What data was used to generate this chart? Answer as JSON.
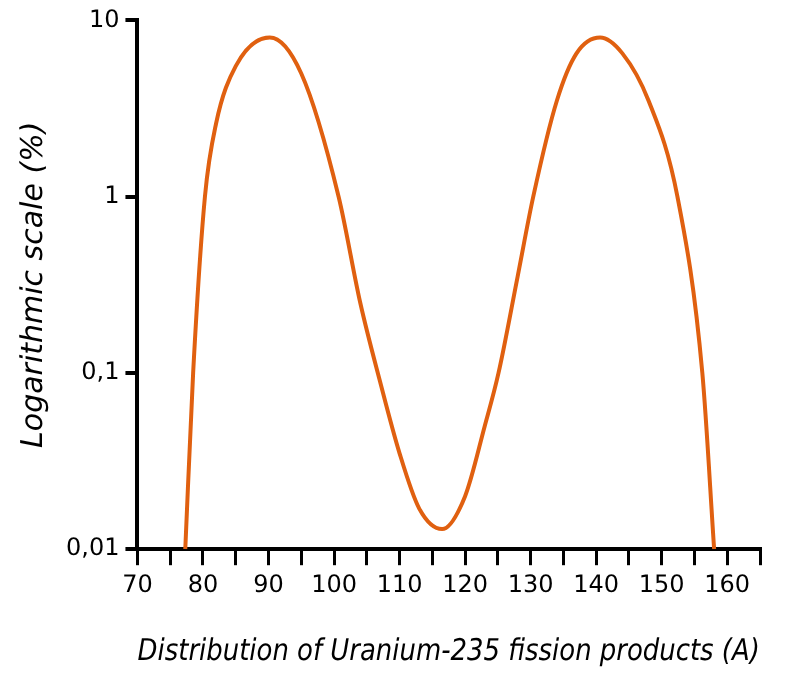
{
  "chart_data": {
    "type": "line",
    "xlabel": "Distribution of Uranium-235 fission products (A)",
    "ylabel": "Logarithmic scale (%)",
    "log": "y",
    "grid": false,
    "legend": false,
    "marker": "none",
    "line_style": "solid",
    "xlim": [
      70,
      165
    ],
    "xticks": [
      70,
      {
        "value": 75,
        "label": null
      },
      80,
      {
        "value": 85,
        "label": null
      },
      90,
      {
        "value": 95,
        "label": null
      },
      100,
      {
        "value": 105,
        "label": null
      },
      110,
      {
        "value": 115,
        "label": null
      },
      120,
      {
        "value": 125,
        "label": null
      },
      130,
      {
        "value": 135,
        "label": null
      },
      140,
      {
        "value": 145,
        "label": null
      },
      150,
      {
        "value": 155,
        "label": null
      },
      160,
      {
        "value": 165,
        "label": null
      }
    ],
    "ylim": [
      0.01,
      10
    ],
    "yticks": [
      {
        "value": 0.01,
        "label": "0,01"
      },
      {
        "value": 0.1,
        "label": "0,1"
      },
      1,
      10
    ],
    "series": [
      {
        "color": "#e06010",
        "x": [
          77.3,
          78.5,
          80.3,
          82,
          85,
          90.2,
          95,
          100.7,
          104,
          107,
          110,
          113,
          116.5,
          120,
          123,
          125.1,
          128,
          130.4,
          134,
          137,
          140.6,
          144,
          148,
          152.4,
          156.2,
          158
        ],
        "values": [
          0.01,
          0.1,
          1,
          2.6,
          5.5,
          8,
          5,
          1,
          0.25,
          0.09,
          0.035,
          0.017,
          0.013,
          0.02,
          0.05,
          0.1,
          0.35,
          1,
          3.5,
          6.5,
          8,
          6.5,
          3.5,
          1,
          0.1,
          0.01
        ]
      }
    ]
  }
}
